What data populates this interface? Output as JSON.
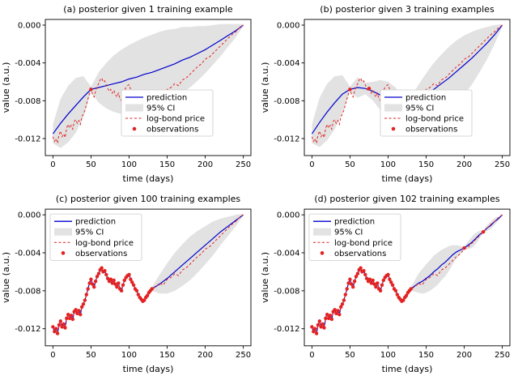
{
  "figure": {
    "xlabel": "time (days)",
    "ylabel": "value (a.u.)",
    "xlim": [
      -10,
      260
    ],
    "ylim": [
      -0.0138,
      0.0006
    ],
    "xticks": [
      0,
      50,
      100,
      150,
      200,
      250
    ],
    "xtick_labels": [
      "0",
      "50",
      "100",
      "150",
      "200",
      "250"
    ],
    "yticks": [
      0,
      -0.004,
      -0.008,
      -0.012
    ],
    "ytick_labels": [
      "0.000",
      "-0.004",
      "-0.008",
      "-0.012"
    ],
    "grid": false,
    "colors": {
      "prediction": "#0000cd",
      "ci": "#e2e2e2",
      "bond": "#e32222",
      "observations": "#e32222",
      "legend_border": "#cccccc",
      "axis": "#000000"
    },
    "legend_entries": [
      "prediction",
      "95% CI",
      "log-bond price",
      "observations"
    ]
  },
  "bond": {
    "x": [
      0,
      2,
      4,
      6,
      8,
      10,
      12,
      14,
      16,
      18,
      20,
      22,
      24,
      26,
      28,
      30,
      32,
      34,
      36,
      38,
      40,
      42,
      44,
      46,
      48,
      50,
      52,
      54,
      56,
      58,
      60,
      62,
      64,
      66,
      68,
      70,
      72,
      74,
      76,
      78,
      80,
      82,
      84,
      86,
      88,
      90,
      92,
      94,
      96,
      98,
      100,
      102,
      104,
      106,
      108,
      110,
      112,
      114,
      116,
      118,
      120,
      122,
      124,
      126,
      128,
      130,
      135,
      140,
      145,
      150,
      155,
      160,
      165,
      170,
      175,
      180,
      185,
      190,
      195,
      200,
      205,
      210,
      215,
      220,
      225,
      230,
      235,
      240,
      245,
      250
    ],
    "y": [
      -0.0118,
      -0.0123,
      -0.012,
      -0.0125,
      -0.0116,
      -0.0112,
      -0.0118,
      -0.0115,
      -0.0119,
      -0.0109,
      -0.0105,
      -0.0109,
      -0.0106,
      -0.011,
      -0.0102,
      -0.01,
      -0.0104,
      -0.0101,
      -0.0105,
      -0.0097,
      -0.0094,
      -0.009,
      -0.0084,
      -0.0078,
      -0.0072,
      -0.0068,
      -0.0073,
      -0.0076,
      -0.007,
      -0.0065,
      -0.0062,
      -0.0058,
      -0.0056,
      -0.006,
      -0.0059,
      -0.0063,
      -0.0067,
      -0.007,
      -0.0068,
      -0.0072,
      -0.0069,
      -0.0073,
      -0.0076,
      -0.0072,
      -0.0078,
      -0.008,
      -0.0074,
      -0.0069,
      -0.0066,
      -0.0064,
      -0.0063,
      -0.0068,
      -0.0071,
      -0.0074,
      -0.0078,
      -0.008,
      -0.0084,
      -0.0087,
      -0.0089,
      -0.0091,
      -0.009,
      -0.0087,
      -0.0085,
      -0.0082,
      -0.008,
      -0.0078,
      -0.0076,
      -0.0072,
      -0.0074,
      -0.0068,
      -0.0066,
      -0.0062,
      -0.0064,
      -0.0058,
      -0.0056,
      -0.0052,
      -0.0048,
      -0.0044,
      -0.0041,
      -0.0036,
      -0.0034,
      -0.003,
      -0.0026,
      -0.0022,
      -0.0018,
      -0.0014,
      -0.001,
      -0.0007,
      -0.0003,
      0.0
    ]
  },
  "chart_data": [
    {
      "id": "a",
      "type": "line",
      "title": "(a) posterior given 1 training example",
      "legend_pos": "center-right",
      "pred": {
        "x": [
          0,
          10,
          20,
          30,
          40,
          50,
          60,
          70,
          80,
          90,
          100,
          110,
          120,
          130,
          140,
          150,
          160,
          170,
          180,
          190,
          200,
          210,
          220,
          230,
          240,
          250
        ],
        "y": [
          -0.0115,
          -0.0104,
          -0.0094,
          -0.0085,
          -0.0076,
          -0.0068,
          -0.0066,
          -0.0064,
          -0.0062,
          -0.006,
          -0.0057,
          -0.0055,
          -0.0052,
          -0.005,
          -0.0047,
          -0.0044,
          -0.0041,
          -0.0037,
          -0.0034,
          -0.003,
          -0.0026,
          -0.0021,
          -0.0016,
          -0.0011,
          -0.0006,
          0.0
        ]
      },
      "ci": {
        "x": [
          0,
          10,
          20,
          30,
          40,
          50,
          60,
          70,
          80,
          90,
          100,
          110,
          120,
          130,
          140,
          150,
          160,
          170,
          180,
          190,
          200,
          210,
          220,
          230,
          240,
          250
        ],
        "upper": [
          -0.0105,
          -0.0078,
          -0.0064,
          -0.0056,
          -0.0054,
          -0.0065,
          -0.005,
          -0.004,
          -0.0032,
          -0.0026,
          -0.0021,
          -0.0017,
          -0.0013,
          -0.001,
          -0.0007,
          -0.0005,
          -0.0004,
          -0.0002,
          -0.0002,
          -0.0001,
          -0.0001,
          0.0,
          0.0001,
          0.0001,
          0.0001,
          0.0001
        ],
        "lower": [
          -0.0125,
          -0.013,
          -0.0124,
          -0.0114,
          -0.0098,
          -0.0071,
          -0.0082,
          -0.0088,
          -0.0092,
          -0.0094,
          -0.0093,
          -0.0093,
          -0.0091,
          -0.009,
          -0.0087,
          -0.0083,
          -0.0078,
          -0.0072,
          -0.0066,
          -0.0059,
          -0.0051,
          -0.0042,
          -0.0033,
          -0.0023,
          -0.0013,
          -0.0001
        ]
      },
      "obs": {
        "x": [
          50
        ],
        "y": [
          -0.0068
        ]
      }
    },
    {
      "id": "b",
      "type": "line",
      "title": "(b) posterior given 3 training examples",
      "legend_pos": "center-right",
      "pred": {
        "x": [
          0,
          10,
          20,
          30,
          40,
          50,
          60,
          70,
          80,
          90,
          100,
          110,
          120,
          130,
          140,
          150,
          160,
          170,
          180,
          190,
          200,
          210,
          220,
          230,
          240,
          250
        ],
        "y": [
          -0.0115,
          -0.0103,
          -0.0092,
          -0.0082,
          -0.0073,
          -0.0068,
          -0.0066,
          -0.0067,
          -0.007,
          -0.0074,
          -0.0078,
          -0.0082,
          -0.0085,
          -0.0083,
          -0.0079,
          -0.0074,
          -0.0068,
          -0.0062,
          -0.0056,
          -0.0049,
          -0.0042,
          -0.0035,
          -0.0027,
          -0.0019,
          -0.001,
          0.0
        ]
      },
      "ci": {
        "x": [
          0,
          10,
          20,
          30,
          40,
          50,
          60,
          70,
          80,
          90,
          100,
          110,
          120,
          130,
          140,
          150,
          160,
          170,
          180,
          190,
          200,
          210,
          220,
          230,
          240,
          250
        ],
        "upper": [
          -0.0105,
          -0.0077,
          -0.0062,
          -0.0054,
          -0.0053,
          -0.0065,
          -0.0055,
          -0.0061,
          -0.006,
          -0.0058,
          -0.006,
          -0.0066,
          -0.0078,
          -0.0076,
          -0.0063,
          -0.0051,
          -0.004,
          -0.0031,
          -0.0023,
          -0.0016,
          -0.0011,
          -0.0007,
          -0.0004,
          -0.0002,
          0.0,
          0.0001
        ],
        "lower": [
          -0.0125,
          -0.0129,
          -0.0122,
          -0.011,
          -0.0093,
          -0.0071,
          -0.0077,
          -0.0073,
          -0.008,
          -0.009,
          -0.0096,
          -0.0098,
          -0.0092,
          -0.009,
          -0.0095,
          -0.0097,
          -0.0096,
          -0.0093,
          -0.0089,
          -0.0082,
          -0.0073,
          -0.0063,
          -0.005,
          -0.0036,
          -0.002,
          -0.0001
        ]
      },
      "obs": {
        "x": [
          50,
          75,
          125
        ],
        "y": [
          -0.0068,
          -0.0067,
          -0.0085
        ]
      }
    },
    {
      "id": "c",
      "type": "line",
      "title": "(c) posterior given 100 training examples",
      "legend_pos": "upper-left",
      "pred_follows_bond_until": 130,
      "pred_tail": {
        "x": [
          130,
          140,
          150,
          160,
          170,
          180,
          190,
          200,
          210,
          220,
          230,
          240,
          250
        ],
        "y": [
          -0.0078,
          -0.0073,
          -0.0067,
          -0.006,
          -0.0053,
          -0.0046,
          -0.0039,
          -0.0032,
          -0.0025,
          -0.0018,
          -0.0012,
          -0.0006,
          0.0
        ]
      },
      "ci": {
        "x": [
          130,
          140,
          150,
          160,
          170,
          180,
          190,
          200,
          210,
          220,
          230,
          240,
          250
        ],
        "upper": [
          -0.0076,
          -0.0063,
          -0.0051,
          -0.004,
          -0.0031,
          -0.0023,
          -0.0017,
          -0.0012,
          -0.0007,
          -0.0004,
          -0.0002,
          0.0,
          0.0001
        ],
        "lower": [
          -0.008,
          -0.0083,
          -0.0083,
          -0.008,
          -0.0075,
          -0.0069,
          -0.0061,
          -0.0052,
          -0.0043,
          -0.0032,
          -0.0022,
          -0.0012,
          -0.0001
        ]
      },
      "obs_from_bond_until": 130,
      "obs_extra": {
        "x": [],
        "y": []
      }
    },
    {
      "id": "d",
      "type": "line",
      "title": "(d) posterior given 102 training examples",
      "legend_pos": "upper-left",
      "pred_follows_bond_until": 130,
      "pred_tail": {
        "x": [
          130,
          135,
          140,
          145,
          150,
          155,
          160,
          165,
          170,
          175,
          180,
          185,
          190,
          195,
          200,
          205,
          210,
          215,
          220,
          225,
          230,
          235,
          240,
          245,
          250
        ],
        "y": [
          -0.0078,
          -0.0075,
          -0.0072,
          -0.007,
          -0.0067,
          -0.0064,
          -0.006,
          -0.0057,
          -0.0053,
          -0.005,
          -0.0046,
          -0.0042,
          -0.0039,
          -0.0037,
          -0.0035,
          -0.0032,
          -0.0029,
          -0.0025,
          -0.0021,
          -0.0018,
          -0.0014,
          -0.0011,
          -0.0007,
          -0.0004,
          0.0
        ]
      },
      "ci": {
        "x": [
          130,
          135,
          140,
          145,
          150,
          155,
          160,
          165,
          170,
          175,
          180,
          185,
          190,
          195,
          200,
          205,
          210,
          215,
          220,
          225,
          230,
          235,
          240,
          245,
          250
        ],
        "upper": [
          -0.0076,
          -0.0069,
          -0.0062,
          -0.0057,
          -0.0052,
          -0.0048,
          -0.0043,
          -0.004,
          -0.0037,
          -0.0035,
          -0.0033,
          -0.0032,
          -0.0032,
          -0.0033,
          -0.00335,
          -0.0028,
          -0.0023,
          -0.0019,
          -0.0017,
          -0.00165,
          -0.0011,
          -0.0007,
          -0.00035,
          -0.0002,
          0.0001
        ],
        "lower": [
          -0.008,
          -0.0081,
          -0.0082,
          -0.0083,
          -0.0082,
          -0.008,
          -0.0077,
          -0.0074,
          -0.0069,
          -0.0065,
          -0.0059,
          -0.0052,
          -0.0046,
          -0.0041,
          -0.00365,
          -0.0036,
          -0.0035,
          -0.0031,
          -0.0025,
          -0.00195,
          -0.0017,
          -0.0015,
          -0.00105,
          -0.0006,
          -0.0001
        ]
      },
      "obs_from_bond_until": 130,
      "obs_extra": {
        "x": [
          200,
          225
        ],
        "y": [
          -0.0035,
          -0.0018
        ]
      }
    }
  ]
}
